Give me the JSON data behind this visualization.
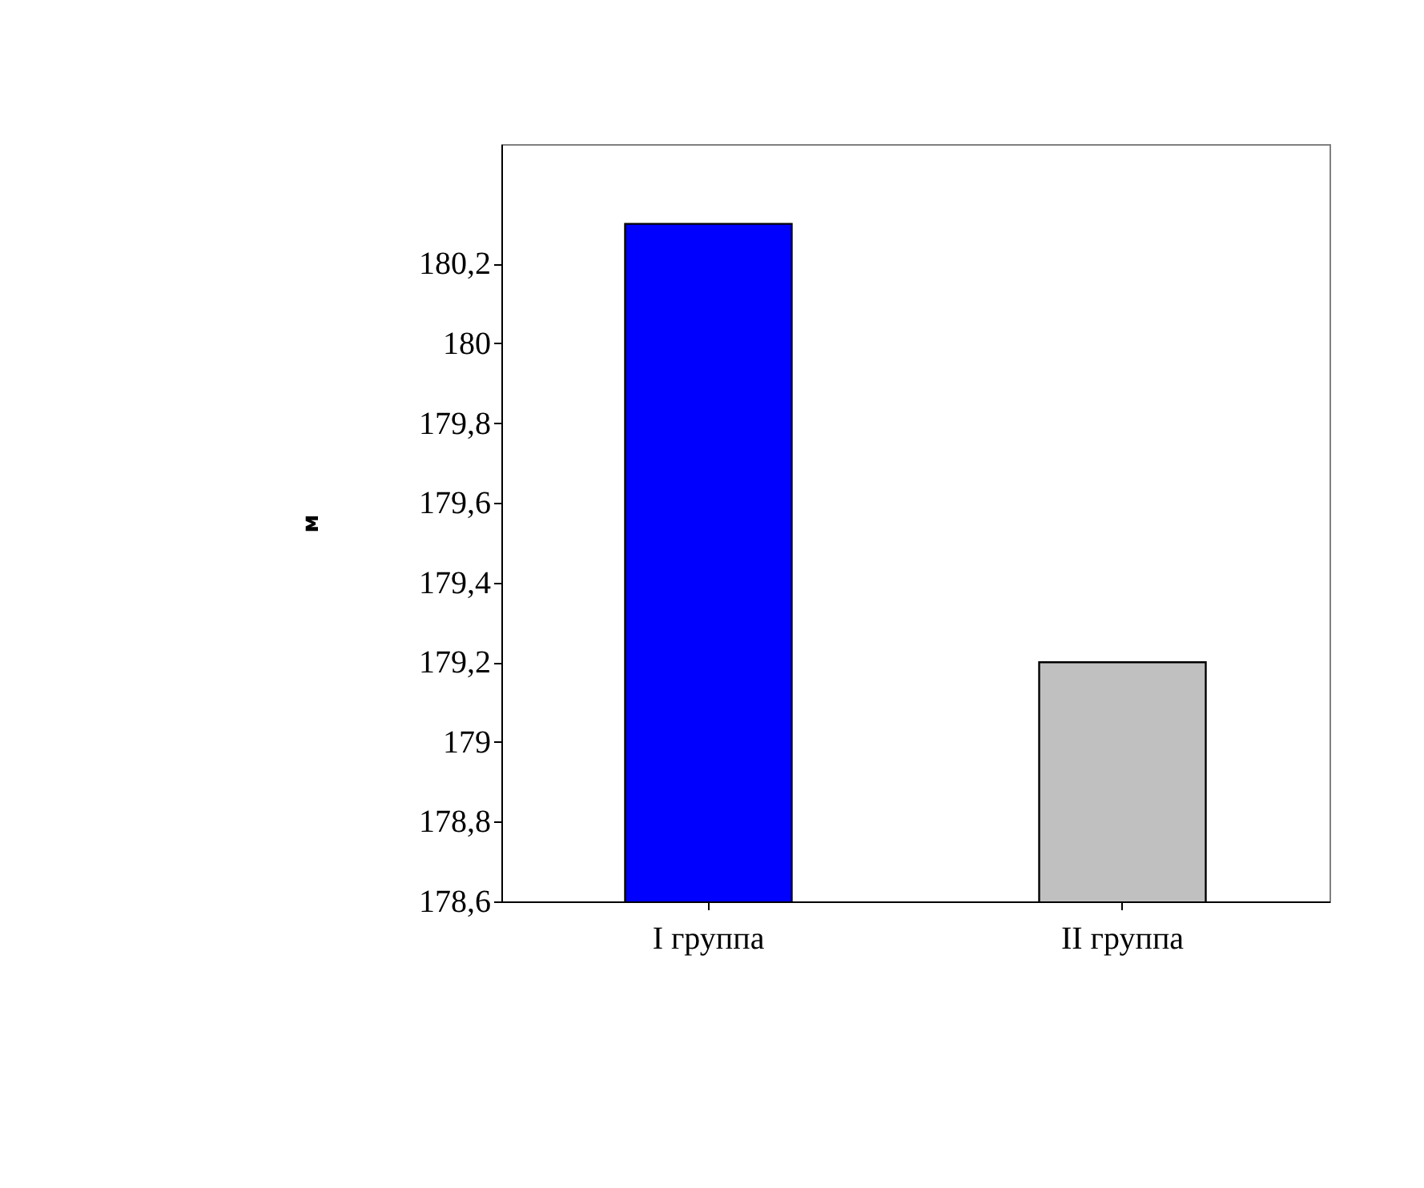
{
  "chart_data": {
    "type": "bar",
    "ylabel": "м",
    "categories": [
      "I группа",
      "II группа"
    ],
    "values": [
      180.3,
      179.2
    ],
    "colors": [
      "#0000ff",
      "#c0c0c0"
    ],
    "ylim": [
      178.6,
      180.5
    ],
    "yticks": [
      {
        "value": 178.6,
        "label": "178,6"
      },
      {
        "value": 178.8,
        "label": "178,8"
      },
      {
        "value": 179,
        "label": "179"
      },
      {
        "value": 179.2,
        "label": "179,2"
      },
      {
        "value": 179.4,
        "label": "179,4"
      },
      {
        "value": 179.6,
        "label": "179,6"
      },
      {
        "value": 179.8,
        "label": "179,8"
      },
      {
        "value": 180,
        "label": "180"
      },
      {
        "value": 180.2,
        "label": "180,2"
      }
    ],
    "grid": false
  }
}
